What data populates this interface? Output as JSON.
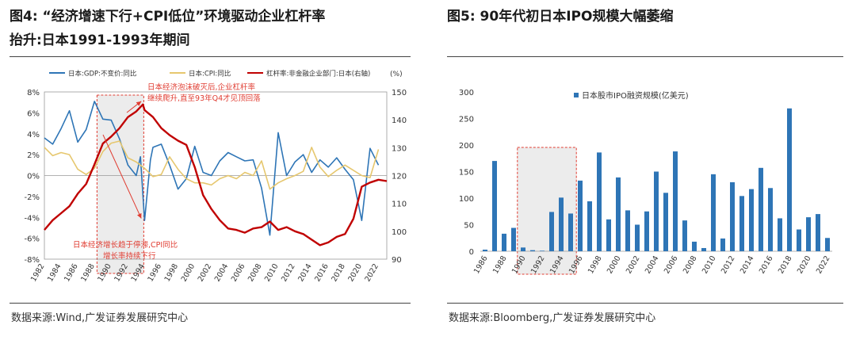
{
  "left": {
    "title_line1": "图4:  “经济增速下行+CPI低位”环境驱动企业杠杆率",
    "title_line2": "抬升:日本1991-1993年期间",
    "source": "数据来源:Wind,广发证券发展研究中心",
    "annotation_top": [
      "日本经济泡沫破灭后,企业杠杆率",
      "继续爬升,直至93年Q4才见顶回落"
    ],
    "annotation_bottom": [
      "日本经济增长趋于停滞,CPI同比",
      "增长率持续下行"
    ],
    "y2_unit": "(%)"
  },
  "right": {
    "title": "图5:  90年代初日本IPO规模大幅萎缩",
    "source": "数据来源:Bloomberg,广发证券发展研究中心"
  },
  "chart_data": [
    {
      "type": "line",
      "xlim": [
        1982,
        2023
      ],
      "x_ticks": [
        "1982",
        "1984",
        "1986",
        "1988",
        "1990",
        "1992",
        "1994",
        "1996",
        "1998",
        "2000",
        "2002",
        "2004",
        "2006",
        "2008",
        "2010",
        "2012",
        "2014",
        "2016",
        "2018",
        "2020",
        "2022"
      ],
      "ylim": [
        -8,
        8
      ],
      "y_ticks": [
        "8%",
        "6%",
        "4%",
        "2%",
        "0%",
        "-2%",
        "-4%",
        "-6%",
        "-8%"
      ],
      "y2lim": [
        90,
        150
      ],
      "y2_ticks": [
        "150",
        "140",
        "130",
        "120",
        "110",
        "100",
        "90"
      ],
      "legend_placement": "top",
      "highlight_range": [
        1988.3,
        1993.9
      ],
      "series": [
        {
          "name": "日本:GDP:不变价:同比",
          "color": "#2e75b6",
          "axis": "left",
          "points": [
            [
              1982,
              3.6
            ],
            [
              1983,
              3.0
            ],
            [
              1984,
              4.5
            ],
            [
              1985,
              6.2
            ],
            [
              1986,
              3.2
            ],
            [
              1987,
              4.4
            ],
            [
              1988,
              7.1
            ],
            [
              1989,
              5.4
            ],
            [
              1990,
              5.3
            ],
            [
              1991,
              3.5
            ],
            [
              1992,
              1.0
            ],
            [
              1993,
              0.0
            ],
            [
              1993.5,
              1.8
            ],
            [
              1994,
              -4.3
            ],
            [
              1994.7,
              1.5
            ],
            [
              1995,
              2.7
            ],
            [
              1996,
              3.0
            ],
            [
              1997,
              1.0
            ],
            [
              1998,
              -1.3
            ],
            [
              1999,
              -0.3
            ],
            [
              2000,
              2.8
            ],
            [
              2001,
              0.3
            ],
            [
              2002,
              0.0
            ],
            [
              2003,
              1.4
            ],
            [
              2004,
              2.2
            ],
            [
              2005,
              1.8
            ],
            [
              2006,
              1.4
            ],
            [
              2007,
              1.5
            ],
            [
              2008,
              -1.2
            ],
            [
              2009,
              -5.7
            ],
            [
              2010,
              4.1
            ],
            [
              2011,
              0.0
            ],
            [
              2012,
              1.3
            ],
            [
              2013,
              2.0
            ],
            [
              2014,
              0.3
            ],
            [
              2015,
              1.5
            ],
            [
              2016,
              0.8
            ],
            [
              2017,
              1.7
            ],
            [
              2018,
              0.6
            ],
            [
              2019,
              -0.4
            ],
            [
              2020,
              -4.3
            ],
            [
              2021,
              2.6
            ],
            [
              2022,
              1.0
            ]
          ]
        },
        {
          "name": "日本:CPI:同比",
          "color": "#e6c76e",
          "axis": "left",
          "points": [
            [
              1982,
              2.7
            ],
            [
              1983,
              1.9
            ],
            [
              1984,
              2.2
            ],
            [
              1985,
              2.0
            ],
            [
              1986,
              0.6
            ],
            [
              1987,
              0.1
            ],
            [
              1988,
              0.7
            ],
            [
              1989,
              2.3
            ],
            [
              1990,
              3.1
            ],
            [
              1991,
              3.3
            ],
            [
              1992,
              1.7
            ],
            [
              1993,
              1.3
            ],
            [
              1994,
              0.7
            ],
            [
              1995,
              -0.1
            ],
            [
              1996,
              0.1
            ],
            [
              1997,
              1.8
            ],
            [
              1998,
              0.6
            ],
            [
              1999,
              -0.3
            ],
            [
              2000,
              -0.7
            ],
            [
              2001,
              -0.7
            ],
            [
              2002,
              -0.9
            ],
            [
              2003,
              -0.3
            ],
            [
              2004,
              0.0
            ],
            [
              2005,
              -0.3
            ],
            [
              2006,
              0.3
            ],
            [
              2007,
              0.0
            ],
            [
              2008,
              1.4
            ],
            [
              2009,
              -1.3
            ],
            [
              2010,
              -0.7
            ],
            [
              2011,
              -0.3
            ],
            [
              2012,
              0.0
            ],
            [
              2013,
              0.4
            ],
            [
              2014,
              2.7
            ],
            [
              2015,
              0.8
            ],
            [
              2016,
              -0.1
            ],
            [
              2017,
              0.5
            ],
            [
              2018,
              1.0
            ],
            [
              2019,
              0.5
            ],
            [
              2020,
              0.0
            ],
            [
              2021,
              -0.2
            ],
            [
              2022,
              2.5
            ]
          ]
        },
        {
          "name": "杠杆率:非金融企业部门:日本(右轴)",
          "color": "#c00000",
          "axis": "right",
          "points": [
            [
              1982,
              100.5
            ],
            [
              1983,
              104.0
            ],
            [
              1984,
              106.5
            ],
            [
              1985,
              109.0
            ],
            [
              1986,
              113.5
            ],
            [
              1987,
              117.0
            ],
            [
              1988,
              124.0
            ],
            [
              1989,
              131.5
            ],
            [
              1990,
              134.0
            ],
            [
              1991,
              137.0
            ],
            [
              1992,
              141.0
            ],
            [
              1993,
              143.0
            ],
            [
              1993.8,
              145.5
            ],
            [
              1994,
              143.5
            ],
            [
              1995,
              141.0
            ],
            [
              1996,
              137.0
            ],
            [
              1997,
              134.5
            ],
            [
              1998,
              132.5
            ],
            [
              1999,
              131.0
            ],
            [
              2000,
              123.0
            ],
            [
              2001,
              113.0
            ],
            [
              2002,
              108.0
            ],
            [
              2003,
              104.0
            ],
            [
              2004,
              101.0
            ],
            [
              2005,
              100.5
            ],
            [
              2006,
              99.5
            ],
            [
              2007,
              101.0
            ],
            [
              2008,
              101.5
            ],
            [
              2009,
              103.5
            ],
            [
              2010,
              100.5
            ],
            [
              2011,
              101.5
            ],
            [
              2012,
              100.0
            ],
            [
              2013,
              99.0
            ],
            [
              2014,
              97.0
            ],
            [
              2015,
              95.0
            ],
            [
              2016,
              96.0
            ],
            [
              2017,
              98.0
            ],
            [
              2018,
              99.0
            ],
            [
              2019,
              104.5
            ],
            [
              2020,
              116.0
            ],
            [
              2021,
              117.5
            ],
            [
              2022,
              118.5
            ],
            [
              2023,
              118.0
            ]
          ]
        }
      ]
    },
    {
      "type": "bar",
      "title": "",
      "categories": [
        "1986",
        "1987",
        "1988",
        "1989",
        "1990",
        "1991",
        "1992",
        "1993",
        "1994",
        "1995",
        "1996",
        "1997",
        "1998",
        "1999",
        "2000",
        "2001",
        "2002",
        "2003",
        "2004",
        "2005",
        "2006",
        "2007",
        "2008",
        "2009",
        "2010",
        "2011",
        "2012",
        "2013",
        "2014",
        "2015",
        "2016",
        "2017",
        "2018",
        "2019",
        "2020",
        "2021",
        "2022"
      ],
      "x_tick_labels": [
        "1986",
        "1988",
        "1990",
        "1992",
        "1994",
        "1996",
        "1998",
        "2000",
        "2002",
        "2004",
        "2006",
        "2008",
        "2010",
        "2012",
        "2014",
        "2016",
        "2018",
        "2020",
        "2022"
      ],
      "series": [
        {
          "name": "日本股市IPO融资规模(亿美元)",
          "color": "#2e75b6",
          "values": [
            3,
            170,
            33,
            44,
            7,
            2,
            1,
            74,
            101,
            71,
            133,
            94,
            186,
            60,
            139,
            77,
            50,
            75,
            150,
            110,
            188,
            58,
            18,
            6,
            145,
            24,
            130,
            104,
            117,
            157,
            119,
            62,
            269,
            41,
            64,
            70,
            25
          ]
        }
      ],
      "ylim": [
        0,
        300
      ],
      "y_ticks": [
        "300",
        "250",
        "200",
        "150",
        "100",
        "50",
        "0"
      ],
      "legend_placement": "top-left",
      "highlight_range": [
        "1990",
        "1995"
      ]
    }
  ]
}
